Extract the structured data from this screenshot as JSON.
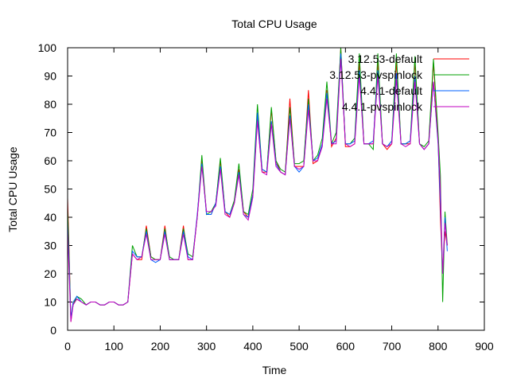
{
  "chart_data": {
    "type": "line",
    "title": "Total CPU Usage",
    "xlabel": "Time",
    "ylabel": "Total CPU Usage",
    "xlim": [
      0,
      900
    ],
    "ylim": [
      0,
      100
    ],
    "xticks": [
      0,
      100,
      200,
      300,
      400,
      500,
      600,
      700,
      800,
      900
    ],
    "yticks": [
      0,
      10,
      20,
      30,
      40,
      50,
      60,
      70,
      80,
      90,
      100
    ],
    "grid": false,
    "legend_position": "top-right",
    "series": [
      {
        "name": "3.12.53-default",
        "color": "#ff0000",
        "x": [
          0,
          3,
          7,
          12,
          20,
          30,
          40,
          50,
          60,
          70,
          80,
          90,
          100,
          110,
          120,
          130,
          140,
          150,
          160,
          170,
          180,
          190,
          200,
          210,
          220,
          230,
          240,
          250,
          260,
          270,
          280,
          290,
          300,
          310,
          320,
          330,
          340,
          350,
          360,
          370,
          380,
          390,
          400,
          410,
          420,
          430,
          440,
          450,
          460,
          470,
          480,
          490,
          500,
          510,
          520,
          530,
          540,
          550,
          560,
          570,
          580,
          590,
          600,
          610,
          620,
          630,
          640,
          650,
          660,
          670,
          680,
          690,
          700,
          710,
          720,
          730,
          740,
          750,
          760,
          770,
          780,
          790,
          800,
          805,
          810,
          815,
          820
        ],
        "y": [
          47,
          30,
          3,
          10,
          11,
          10,
          9,
          10,
          10,
          9,
          9,
          10,
          10,
          9,
          9,
          10,
          27,
          25,
          25,
          37,
          26,
          25,
          25,
          37,
          25,
          25,
          25,
          37,
          25,
          25,
          40,
          60,
          41,
          41,
          45,
          60,
          42,
          40,
          45,
          57,
          42,
          40,
          48,
          75,
          56,
          56,
          78,
          60,
          56,
          55,
          82,
          58,
          58,
          58,
          85,
          59,
          60,
          66,
          85,
          65,
          68,
          100,
          65,
          65,
          66,
          95,
          66,
          66,
          66,
          95,
          66,
          64,
          66,
          95,
          66,
          66,
          66,
          95,
          66,
          64,
          66,
          95,
          68,
          40,
          20,
          35,
          30
        ]
      },
      {
        "name": "3.12.53-pvspinlock",
        "color": "#00a000",
        "x": [
          0,
          3,
          7,
          12,
          20,
          30,
          40,
          50,
          60,
          70,
          80,
          90,
          100,
          110,
          120,
          130,
          140,
          150,
          160,
          170,
          180,
          190,
          200,
          210,
          220,
          230,
          240,
          250,
          260,
          270,
          280,
          290,
          300,
          310,
          320,
          330,
          340,
          350,
          360,
          370,
          380,
          390,
          400,
          410,
          420,
          430,
          440,
          450,
          460,
          470,
          480,
          490,
          500,
          510,
          520,
          530,
          540,
          550,
          560,
          570,
          580,
          590,
          600,
          610,
          620,
          630,
          640,
          650,
          660,
          670,
          680,
          690,
          700,
          710,
          720,
          730,
          740,
          750,
          760,
          770,
          780,
          790,
          800,
          805,
          810,
          815,
          820
        ],
        "y": [
          43,
          28,
          4,
          9,
          12,
          11,
          9,
          10,
          10,
          9,
          9,
          10,
          10,
          9,
          9,
          10,
          30,
          26,
          26,
          36,
          26,
          25,
          25,
          36,
          26,
          25,
          25,
          36,
          27,
          26,
          40,
          62,
          41,
          42,
          45,
          61,
          42,
          41,
          46,
          59,
          42,
          41,
          50,
          80,
          57,
          56,
          79,
          60,
          57,
          56,
          79,
          59,
          59,
          60,
          82,
          60,
          62,
          68,
          88,
          66,
          70,
          100,
          66,
          66,
          68,
          98,
          66,
          66,
          64,
          98,
          66,
          65,
          67,
          98,
          66,
          66,
          67,
          97,
          66,
          65,
          67,
          96,
          70,
          55,
          10,
          42,
          30
        ]
      },
      {
        "name": "4.4.1-default",
        "color": "#0060ff",
        "x": [
          0,
          3,
          7,
          12,
          20,
          30,
          40,
          50,
          60,
          70,
          80,
          90,
          100,
          110,
          120,
          130,
          140,
          150,
          160,
          170,
          180,
          190,
          200,
          210,
          220,
          230,
          240,
          250,
          260,
          270,
          280,
          290,
          300,
          310,
          320,
          330,
          340,
          350,
          360,
          370,
          380,
          390,
          400,
          410,
          420,
          430,
          440,
          450,
          460,
          470,
          480,
          490,
          500,
          510,
          520,
          530,
          540,
          550,
          560,
          570,
          580,
          590,
          600,
          610,
          620,
          630,
          640,
          650,
          660,
          670,
          680,
          690,
          700,
          710,
          720,
          730,
          740,
          750,
          760,
          770,
          780,
          790,
          800,
          805,
          810,
          815,
          820
        ],
        "y": [
          38,
          25,
          4,
          10,
          12,
          10,
          9,
          10,
          10,
          9,
          9,
          10,
          10,
          9,
          9,
          10,
          28,
          26,
          26,
          35,
          25,
          24,
          25,
          35,
          25,
          25,
          25,
          35,
          26,
          25,
          41,
          59,
          41,
          41,
          45,
          58,
          42,
          41,
          45,
          56,
          41,
          40,
          48,
          77,
          57,
          56,
          74,
          59,
          56,
          55,
          76,
          58,
          56,
          58,
          80,
          60,
          61,
          66,
          84,
          66,
          67,
          98,
          66,
          66,
          67,
          92,
          66,
          66,
          67,
          92,
          66,
          65,
          67,
          91,
          66,
          66,
          67,
          90,
          66,
          64,
          66,
          88,
          66,
          45,
          20,
          40,
          28
        ]
      },
      {
        "name": "4.4.1-pvspinlock",
        "color": "#c000c0",
        "x": [
          0,
          3,
          7,
          12,
          20,
          30,
          40,
          50,
          60,
          70,
          80,
          90,
          100,
          110,
          120,
          130,
          140,
          150,
          160,
          170,
          180,
          190,
          200,
          210,
          220,
          230,
          240,
          250,
          260,
          270,
          280,
          290,
          300,
          310,
          320,
          330,
          340,
          350,
          360,
          370,
          380,
          390,
          400,
          410,
          420,
          430,
          440,
          450,
          460,
          470,
          480,
          490,
          500,
          510,
          520,
          530,
          540,
          550,
          560,
          570,
          580,
          590,
          600,
          610,
          620,
          630,
          640,
          650,
          660,
          670,
          680,
          690,
          700,
          710,
          720,
          730,
          740,
          750,
          760,
          770,
          780,
          790,
          800,
          805,
          810,
          815,
          820
        ],
        "y": [
          35,
          22,
          3,
          9,
          11,
          10,
          9,
          10,
          10,
          9,
          9,
          10,
          10,
          9,
          9,
          10,
          27,
          25,
          26,
          34,
          25,
          25,
          25,
          34,
          25,
          25,
          25,
          34,
          25,
          25,
          40,
          58,
          42,
          42,
          44,
          57,
          41,
          40,
          45,
          55,
          41,
          39,
          47,
          74,
          56,
          55,
          73,
          58,
          56,
          55,
          75,
          58,
          57,
          58,
          78,
          60,
          60,
          65,
          82,
          66,
          66,
          96,
          66,
          65,
          66,
          90,
          66,
          66,
          66,
          90,
          66,
          65,
          66,
          89,
          66,
          65,
          66,
          88,
          66,
          64,
          66,
          88,
          67,
          50,
          20,
          38,
          30
        ]
      }
    ]
  }
}
